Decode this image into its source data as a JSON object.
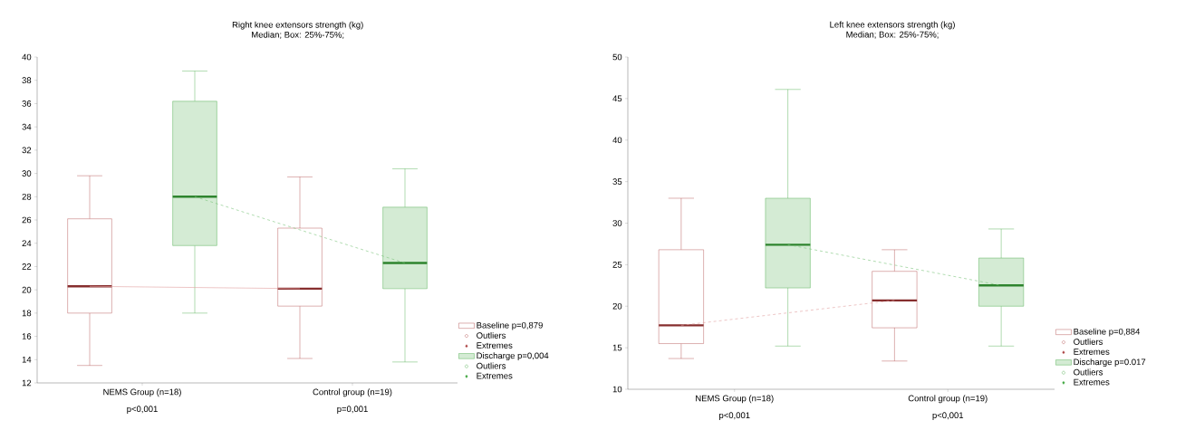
{
  "chart_data": [
    {
      "type": "box",
      "title": "Right knee extensors strength (kg)",
      "subtitle": "Median; Box: 25%-75%;",
      "categories": [
        "NEMS Group (n=18)",
        "Control group (n=19)"
      ],
      "series": [
        {
          "name": "Baseline p=0,879",
          "color": "#a83a3a",
          "boxes": [
            {
              "low": 13.5,
              "q1": 18.0,
              "median": 20.3,
              "q3": 26.1,
              "high": 29.8
            },
            {
              "low": 14.1,
              "q1": 18.6,
              "median": 20.1,
              "q3": 25.3,
              "high": 29.7
            }
          ]
        },
        {
          "name": "Discharge p=0,004",
          "color": "#3aa53a",
          "boxes": [
            {
              "low": 18.0,
              "q1": 23.8,
              "median": 28.0,
              "q3": 36.2,
              "high": 38.8
            },
            {
              "low": 13.8,
              "q1": 20.1,
              "median": 22.3,
              "q3": 27.1,
              "high": 30.4
            }
          ]
        },
        {
          "type": "line",
          "color": "#e0a0a0",
          "line_style": "solid",
          "values": [
            20.3,
            20.1
          ]
        },
        {
          "type": "line",
          "color": "#7cc47c",
          "line_style": "dashed",
          "values": [
            28.0,
            22.3
          ]
        }
      ],
      "ylim": [
        12,
        40
      ],
      "yticks": [
        12,
        14,
        16,
        18,
        20,
        22,
        24,
        26,
        28,
        30,
        32,
        34,
        36,
        38,
        40
      ],
      "legend": "bottom right",
      "annotations": [
        "p<0,001",
        "p=0,001",
        "Outliers",
        "Extremes",
        "Outliers",
        "Extremes"
      ]
    },
    {
      "type": "box",
      "title": "Left knee extensors strength (kg)",
      "subtitle": "Median; Box: 25%-75%;",
      "categories": [
        "NEMS Group (n=18)",
        "Control group (n=19)"
      ],
      "series": [
        {
          "name": "Baseline p=0,884",
          "color": "#a83a3a",
          "boxes": [
            {
              "low": 13.7,
              "q1": 15.5,
              "median": 17.7,
              "q3": 26.8,
              "high": 33.0
            },
            {
              "low": 13.4,
              "q1": 17.4,
              "median": 20.7,
              "q3": 24.2,
              "high": 26.8
            }
          ]
        },
        {
          "name": "Discharge p=0.017",
          "color": "#3aa53a",
          "boxes": [
            {
              "low": 15.2,
              "q1": 22.2,
              "median": 27.4,
              "q3": 33.0,
              "high": 46.1
            },
            {
              "low": 15.2,
              "q1": 20.0,
              "median": 22.5,
              "q3": 25.8,
              "high": 29.3
            }
          ]
        },
        {
          "type": "line",
          "color": "#e0a0a0",
          "line_style": "dashed",
          "values": [
            17.7,
            20.7
          ]
        },
        {
          "type": "line",
          "color": "#7cc47c",
          "line_style": "dashed",
          "values": [
            27.4,
            22.5
          ]
        }
      ],
      "ylim": [
        10,
        50
      ],
      "yticks": [
        10,
        15,
        20,
        25,
        30,
        35,
        40,
        45,
        50
      ],
      "legend": "bottom right",
      "annotations": [
        "p<0,001",
        "p<0,001",
        "Outliers",
        "Extremes",
        "Outliers",
        "Extremes"
      ]
    }
  ]
}
